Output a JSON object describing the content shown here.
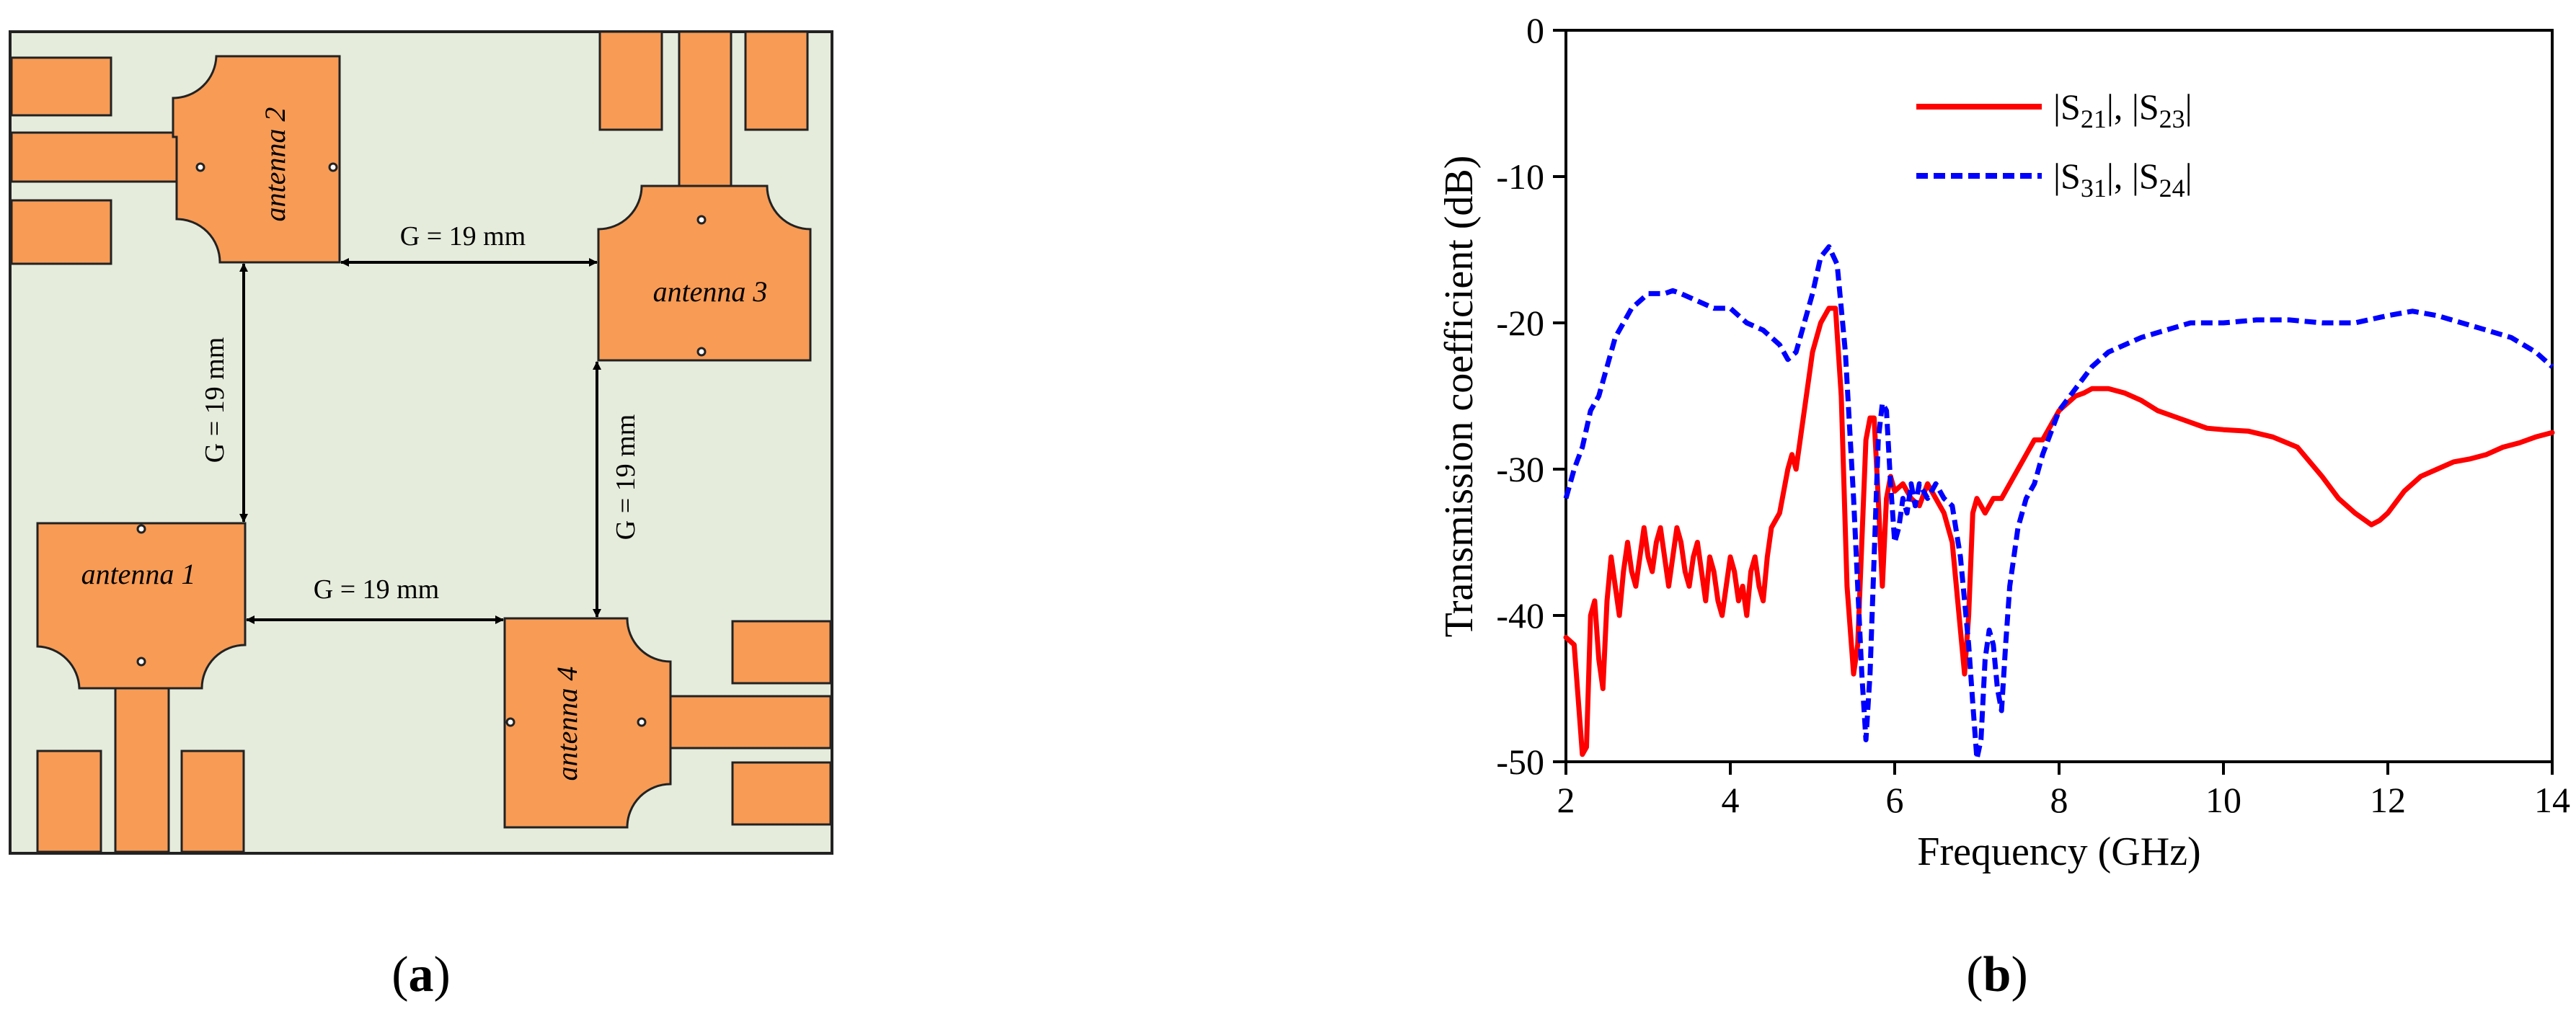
{
  "panel_a": {
    "label_open": "(",
    "label_letter": "a",
    "label_close": ")",
    "antennas": [
      "antenna 1",
      "antenna 2",
      "antenna 3",
      "antenna 4"
    ],
    "gap_label": "G = 19 mm",
    "colors": {
      "substrate": "#e6ecdc",
      "patch": "#f79b55",
      "outline": "#222222"
    }
  },
  "panel_b": {
    "label_open": "(",
    "label_letter": "b",
    "label_close": ")"
  },
  "chart_data": {
    "type": "line",
    "title": "",
    "xlabel": "Frequency (GHz)",
    "ylabel": "Transmission coefficient (dB)",
    "xlim": [
      2,
      14
    ],
    "ylim": [
      -50,
      0
    ],
    "xticks": [
      2,
      4,
      6,
      8,
      10,
      12,
      14
    ],
    "yticks": [
      0,
      -10,
      -20,
      -30,
      -40,
      -50
    ],
    "grid": false,
    "legend_position": "top-center",
    "series": [
      {
        "name": "|S21|, |S23|",
        "legend_parts": [
          "|S",
          "21",
          "|, |S",
          "23",
          "|"
        ],
        "color": "#ff0000",
        "style": "solid",
        "x": [
          2.0,
          2.1,
          2.2,
          2.25,
          2.3,
          2.35,
          2.4,
          2.45,
          2.5,
          2.55,
          2.6,
          2.65,
          2.7,
          2.75,
          2.8,
          2.85,
          2.9,
          2.95,
          3.0,
          3.05,
          3.1,
          3.15,
          3.2,
          3.25,
          3.3,
          3.35,
          3.4,
          3.45,
          3.5,
          3.55,
          3.6,
          3.65,
          3.7,
          3.75,
          3.8,
          3.85,
          3.9,
          3.95,
          4.0,
          4.05,
          4.1,
          4.15,
          4.2,
          4.25,
          4.3,
          4.35,
          4.4,
          4.45,
          4.5,
          4.6,
          4.7,
          4.75,
          4.8,
          4.85,
          4.9,
          5.0,
          5.1,
          5.2,
          5.28,
          5.35,
          5.42,
          5.5,
          5.55,
          5.6,
          5.65,
          5.7,
          5.75,
          5.8,
          5.85,
          5.9,
          5.95,
          6.0,
          6.1,
          6.2,
          6.3,
          6.4,
          6.5,
          6.6,
          6.7,
          6.8,
          6.85,
          6.9,
          6.95,
          7.0,
          7.1,
          7.2,
          7.3,
          7.4,
          7.5,
          7.6,
          7.7,
          7.8,
          7.9,
          8.0,
          8.1,
          8.2,
          8.3,
          8.4,
          8.6,
          8.8,
          9.0,
          9.2,
          9.5,
          9.8,
          10.0,
          10.3,
          10.6,
          10.9,
          11.2,
          11.4,
          11.6,
          11.8,
          11.9,
          12.0,
          12.2,
          12.4,
          12.6,
          12.8,
          13.0,
          13.2,
          13.4,
          13.6,
          13.8,
          14.0
        ],
        "y": [
          -41.5,
          -42,
          -49.5,
          -49,
          -40,
          -39,
          -43,
          -45,
          -39,
          -36,
          -38,
          -40,
          -37,
          -35,
          -37,
          -38,
          -36,
          -34,
          -36,
          -37,
          -35,
          -34,
          -36,
          -38,
          -36,
          -34,
          -35,
          -37,
          -38,
          -36,
          -35,
          -37,
          -39,
          -36,
          -37,
          -39,
          -40,
          -38,
          -36,
          -37,
          -39,
          -38,
          -40,
          -37,
          -36,
          -38,
          -39,
          -36,
          -34,
          -33,
          -30,
          -29,
          -30,
          -28,
          -26,
          -22,
          -20,
          -19,
          -19,
          -25,
          -38,
          -44,
          -42,
          -35,
          -28,
          -26.5,
          -26.5,
          -32,
          -38,
          -32,
          -30.5,
          -31.5,
          -31,
          -32,
          -32.5,
          -31,
          -32,
          -33,
          -35,
          -41,
          -44,
          -40,
          -33,
          -32,
          -33,
          -32,
          -32,
          -31,
          -30,
          -29,
          -28,
          -28,
          -27,
          -26,
          -25.5,
          -25,
          -24.8,
          -24.5,
          -24.5,
          -24.8,
          -25.3,
          -26,
          -26.6,
          -27.2,
          -27.3,
          -27.4,
          -27.8,
          -28.5,
          -30.5,
          -32,
          -33,
          -33.8,
          -33.5,
          -33,
          -31.5,
          -30.5,
          -30,
          -29.5,
          -29.3,
          -29,
          -28.5,
          -28.2,
          -27.8,
          -27.5
        ]
      },
      {
        "name": "|S31|, |S24|",
        "legend_parts": [
          "|S",
          "31",
          "|, |S",
          "24",
          "|"
        ],
        "color": "#0000ff",
        "style": "dashed",
        "x": [
          2.0,
          2.1,
          2.2,
          2.3,
          2.4,
          2.5,
          2.6,
          2.7,
          2.8,
          2.9,
          3.0,
          3.2,
          3.3,
          3.4,
          3.6,
          3.8,
          4.0,
          4.2,
          4.4,
          4.6,
          4.7,
          4.8,
          4.9,
          5.0,
          5.1,
          5.2,
          5.3,
          5.4,
          5.5,
          5.55,
          5.6,
          5.65,
          5.7,
          5.75,
          5.8,
          5.85,
          5.9,
          5.95,
          6.0,
          6.05,
          6.1,
          6.15,
          6.2,
          6.25,
          6.3,
          6.4,
          6.5,
          6.6,
          6.7,
          6.8,
          6.9,
          6.95,
          7.0,
          7.05,
          7.1,
          7.15,
          7.2,
          7.25,
          7.3,
          7.35,
          7.4,
          7.5,
          7.6,
          7.7,
          7.8,
          8.0,
          8.2,
          8.4,
          8.6,
          8.8,
          9.0,
          9.3,
          9.6,
          10.0,
          10.4,
          10.8,
          11.2,
          11.6,
          12.0,
          12.3,
          12.6,
          12.9,
          13.2,
          13.5,
          13.8,
          14.0
        ],
        "y": [
          -32,
          -30,
          -28.5,
          -26,
          -25,
          -23,
          -21,
          -20,
          -19,
          -18.5,
          -18,
          -18,
          -17.8,
          -18,
          -18.5,
          -19,
          -19,
          -20,
          -20.5,
          -21.5,
          -22.5,
          -22,
          -20,
          -18,
          -15.5,
          -14.8,
          -16,
          -22,
          -32,
          -38,
          -44,
          -48.5,
          -44,
          -36,
          -28,
          -25.5,
          -26,
          -31,
          -35,
          -34,
          -32,
          -33,
          -31,
          -32.5,
          -31,
          -32,
          -31,
          -32,
          -32.5,
          -36,
          -42,
          -46,
          -49.8,
          -48.5,
          -43,
          -41,
          -42,
          -45,
          -46.5,
          -42,
          -38,
          -34,
          -32,
          -31,
          -29,
          -26,
          -24.5,
          -23,
          -22,
          -21.5,
          -21,
          -20.5,
          -20,
          -20,
          -19.8,
          -19.8,
          -20,
          -20,
          -19.5,
          -19.2,
          -19.5,
          -20,
          -20.5,
          -21,
          -22,
          -23
        ]
      }
    ]
  }
}
